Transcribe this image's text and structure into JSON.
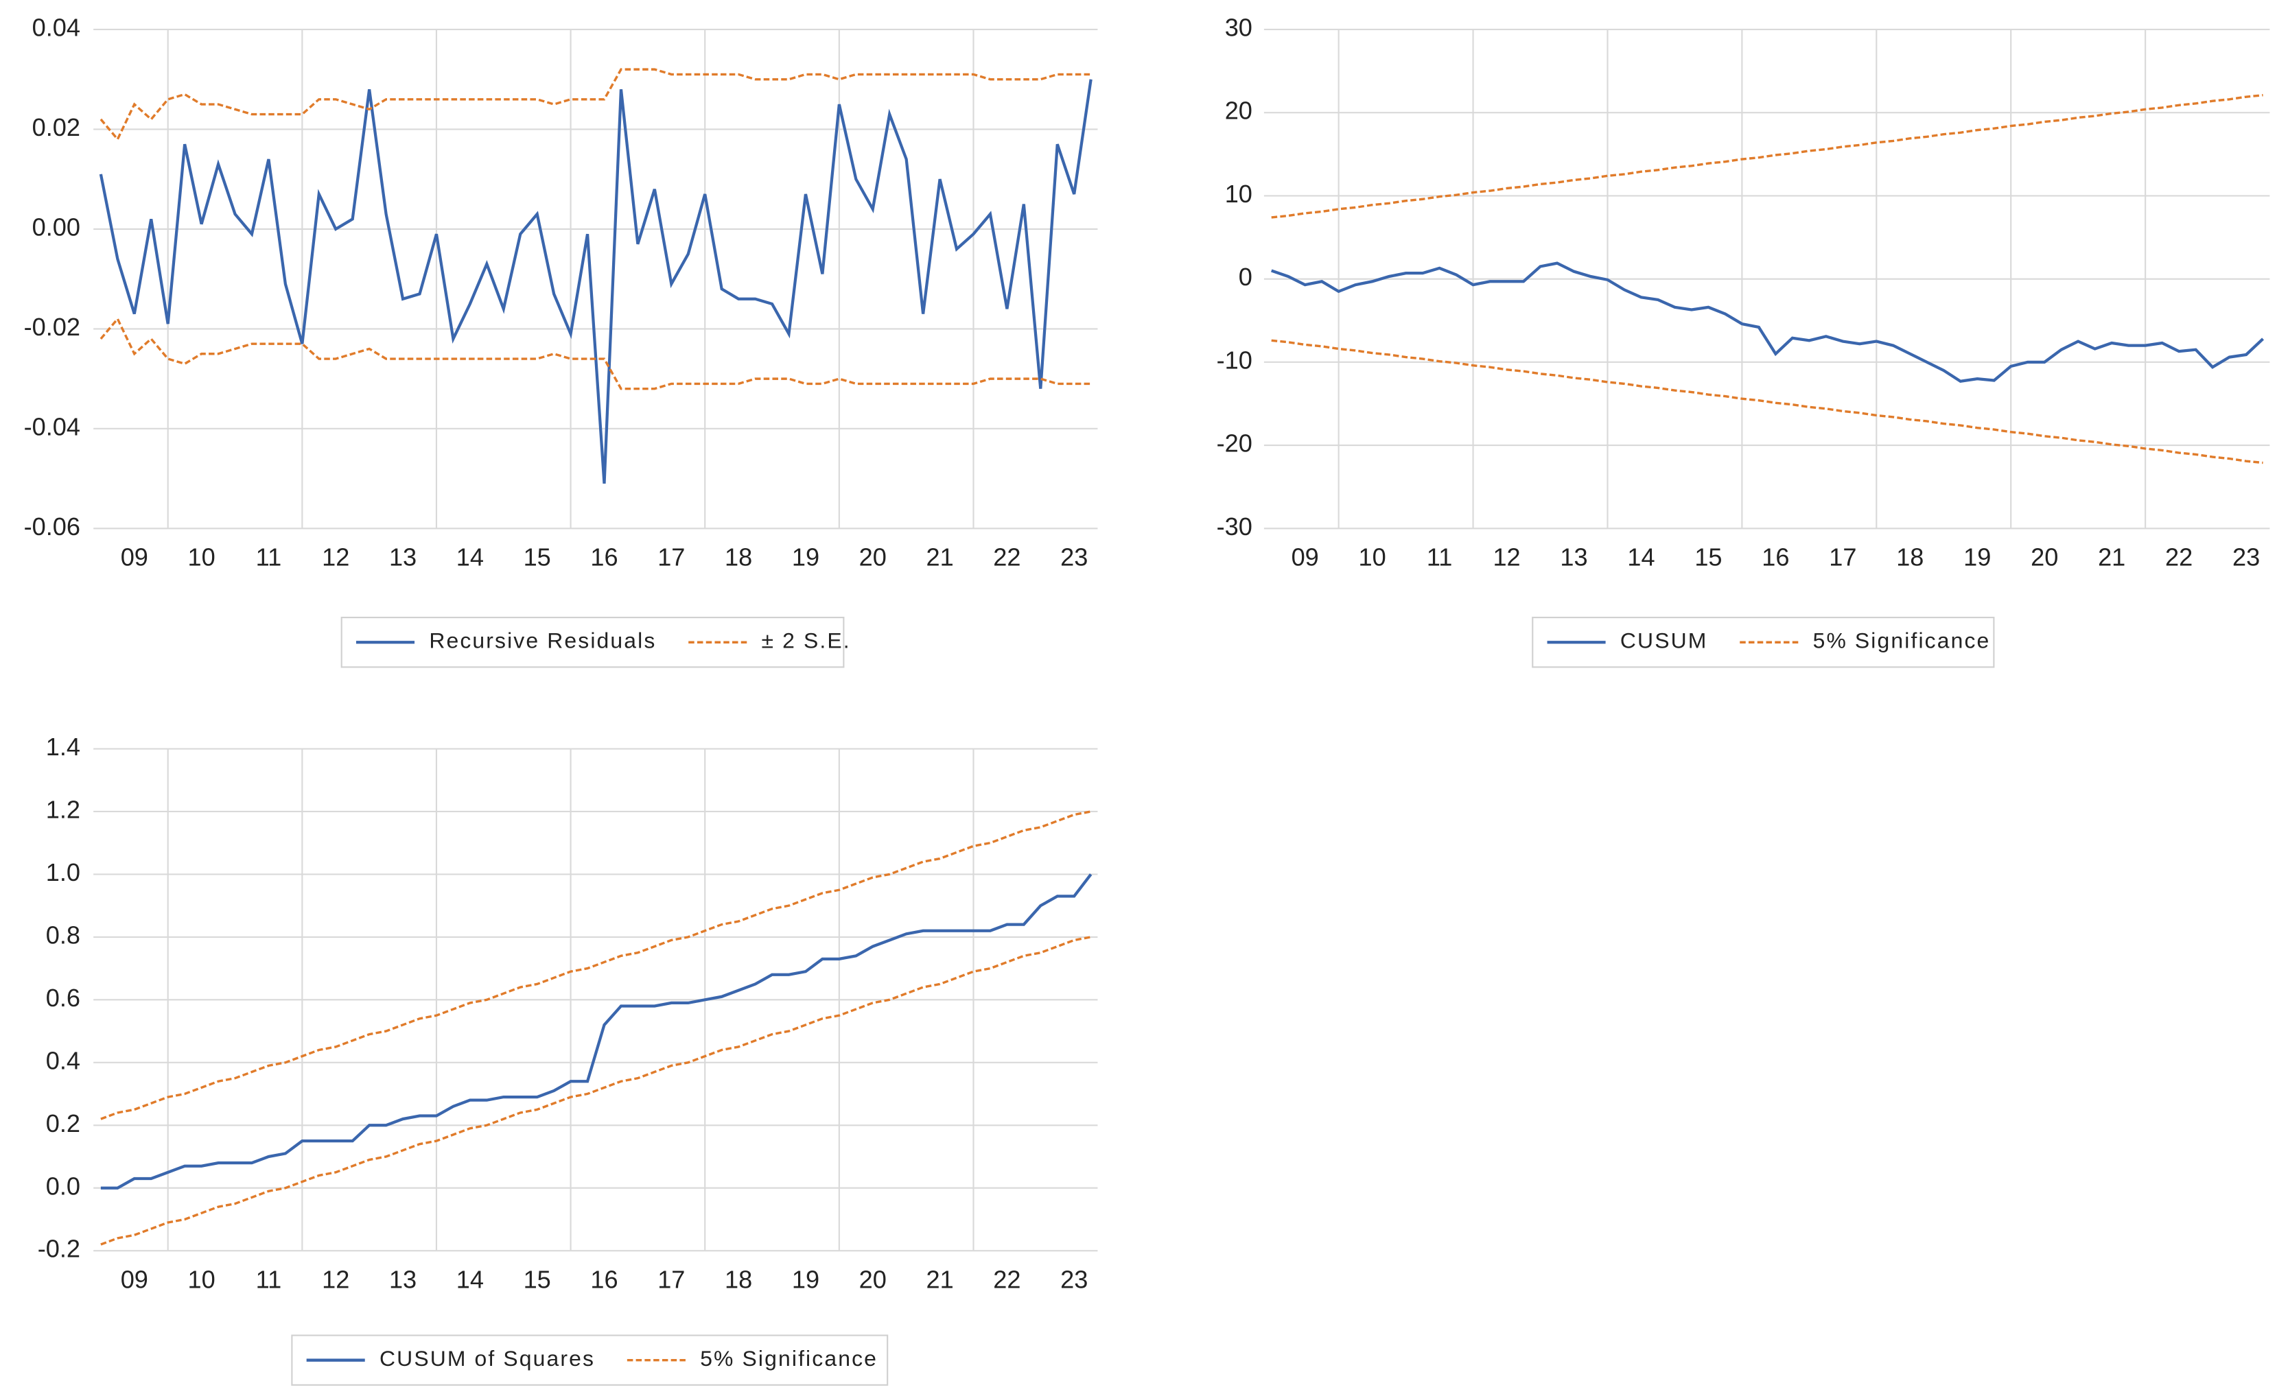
{
  "chart_data": [
    {
      "type": "line",
      "x": [
        2009,
        2009.25,
        2009.5,
        2009.75,
        2010,
        2010.25,
        2010.5,
        2010.75,
        2011,
        2011.25,
        2011.5,
        2011.75,
        2012,
        2012.25,
        2012.5,
        2012.75,
        2013,
        2013.25,
        2013.5,
        2013.75,
        2014,
        2014.25,
        2014.5,
        2014.75,
        2015,
        2015.25,
        2015.5,
        2015.75,
        2016,
        2016.25,
        2016.5,
        2016.75,
        2017,
        2017.25,
        2017.5,
        2017.75,
        2018,
        2018.25,
        2018.5,
        2018.75,
        2019,
        2019.25,
        2019.5,
        2019.75,
        2020,
        2020.25,
        2020.5,
        2020.75,
        2021,
        2021.25,
        2021.5,
        2021.75,
        2022,
        2022.25,
        2022.5,
        2022.75,
        2023,
        2023.25,
        2023.5,
        2023.75
      ],
      "series": [
        {
          "name": "Recursive Residuals",
          "color": "#3a66ad",
          "values": [
            0.011,
            -0.006,
            -0.017,
            0.002,
            -0.019,
            0.017,
            0.001,
            0.013,
            0.003,
            -0.001,
            0.014,
            -0.011,
            -0.023,
            0.007,
            0.0,
            0.002,
            0.028,
            0.003,
            -0.014,
            -0.013,
            -0.001,
            -0.022,
            -0.015,
            -0.007,
            -0.016,
            -0.001,
            0.003,
            -0.013,
            -0.021,
            -0.001,
            -0.051,
            0.028,
            -0.003,
            0.008,
            -0.011,
            -0.005,
            0.007,
            -0.012,
            -0.014,
            -0.014,
            -0.015,
            -0.021,
            0.007,
            -0.009,
            0.025,
            0.01,
            0.004,
            0.023,
            0.014,
            -0.017,
            0.01,
            -0.004,
            -0.001,
            0.003,
            -0.016,
            0.005,
            -0.032,
            0.017,
            0.007,
            0.03
          ]
        },
        {
          "name": "± 2 S.E.",
          "color": "#e07b2a",
          "dash": true,
          "values": [
            0.022,
            0.018,
            0.025,
            0.022,
            0.026,
            0.027,
            0.025,
            0.025,
            0.024,
            0.023,
            0.023,
            0.023,
            0.023,
            0.026,
            0.026,
            0.025,
            0.024,
            0.026,
            0.026,
            0.026,
            0.026,
            0.026,
            0.026,
            0.026,
            0.026,
            0.026,
            0.026,
            0.025,
            0.026,
            0.026,
            0.026,
            0.032,
            0.032,
            0.032,
            0.031,
            0.031,
            0.031,
            0.031,
            0.031,
            0.03,
            0.03,
            0.03,
            0.031,
            0.031,
            0.03,
            0.031,
            0.031,
            0.031,
            0.031,
            0.031,
            0.031,
            0.031,
            0.031,
            0.03,
            0.03,
            0.03,
            0.03,
            0.031,
            0.031,
            0.031
          ],
          "lower": [
            -0.022,
            -0.018,
            -0.025,
            -0.022,
            -0.026,
            -0.027,
            -0.025,
            -0.025,
            -0.024,
            -0.023,
            -0.023,
            -0.023,
            -0.023,
            -0.026,
            -0.026,
            -0.025,
            -0.024,
            -0.026,
            -0.026,
            -0.026,
            -0.026,
            -0.026,
            -0.026,
            -0.026,
            -0.026,
            -0.026,
            -0.026,
            -0.025,
            -0.026,
            -0.026,
            -0.026,
            -0.032,
            -0.032,
            -0.032,
            -0.031,
            -0.031,
            -0.031,
            -0.031,
            -0.031,
            -0.03,
            -0.03,
            -0.03,
            -0.031,
            -0.031,
            -0.03,
            -0.031,
            -0.031,
            -0.031,
            -0.031,
            -0.031,
            -0.031,
            -0.031,
            -0.031,
            -0.03,
            -0.03,
            -0.03,
            -0.03,
            -0.031,
            -0.031,
            -0.031
          ]
        }
      ],
      "xlim": [
        2008.89,
        2023.85
      ],
      "xticks": [
        {
          "value": 2009.5,
          "label": "09"
        },
        {
          "value": 2010.5,
          "label": "10"
        },
        {
          "value": 2011.5,
          "label": "11"
        },
        {
          "value": 2012.5,
          "label": "12"
        },
        {
          "value": 2013.5,
          "label": "13"
        },
        {
          "value": 2014.5,
          "label": "14"
        },
        {
          "value": 2015.5,
          "label": "15"
        },
        {
          "value": 2016.5,
          "label": "16"
        },
        {
          "value": 2017.5,
          "label": "17"
        },
        {
          "value": 2018.5,
          "label": "18"
        },
        {
          "value": 2019.5,
          "label": "19"
        },
        {
          "value": 2020.5,
          "label": "20"
        },
        {
          "value": 2021.5,
          "label": "21"
        },
        {
          "value": 2022.5,
          "label": "22"
        },
        {
          "value": 2023.5,
          "label": "23"
        }
      ],
      "xgrid": [
        2010,
        2012,
        2014,
        2016,
        2018,
        2020,
        2022
      ],
      "ylim": [
        -0.06,
        0.04
      ],
      "yticks": [
        {
          "value": 0.04,
          "label": "0.04"
        },
        {
          "value": 0.02,
          "label": "0.02"
        },
        {
          "value": 0,
          "label": "0.00"
        },
        {
          "value": -0.02,
          "label": "-0.02"
        },
        {
          "value": -0.04,
          "label": "-0.04"
        },
        {
          "value": -0.06,
          "label": "-0.06"
        }
      ],
      "grid": true
    },
    {
      "type": "line",
      "x": [
        2009,
        2009.25,
        2009.5,
        2009.75,
        2010,
        2010.25,
        2010.5,
        2010.75,
        2011,
        2011.25,
        2011.5,
        2011.75,
        2012,
        2012.25,
        2012.5,
        2012.75,
        2013,
        2013.25,
        2013.5,
        2013.75,
        2014,
        2014.25,
        2014.5,
        2014.75,
        2015,
        2015.25,
        2015.5,
        2015.75,
        2016,
        2016.25,
        2016.5,
        2016.75,
        2017,
        2017.25,
        2017.5,
        2017.75,
        2018,
        2018.25,
        2018.5,
        2018.75,
        2019,
        2019.25,
        2019.5,
        2019.75,
        2020,
        2020.25,
        2020.5,
        2020.75,
        2021,
        2021.25,
        2021.5,
        2021.75,
        2022,
        2022.25,
        2022.5,
        2022.75,
        2023,
        2023.25,
        2023.5,
        2023.75
      ],
      "series": [
        {
          "name": "CUSUM",
          "color": "#3a66ad",
          "values": [
            1,
            0.3,
            -0.7,
            -0.3,
            -1.5,
            -0.7,
            -0.3,
            0.3,
            0.7,
            0.7,
            1.3,
            0.5,
            -0.7,
            -0.3,
            -0.3,
            -0.3,
            1.5,
            1.9,
            0.9,
            0.3,
            -0.1,
            -1.3,
            -2.2,
            -2.5,
            -3.4,
            -3.7,
            -3.4,
            -4.2,
            -5.4,
            -5.8,
            -9,
            -7.1,
            -7.4,
            -6.9,
            -7.5,
            -7.8,
            -7.5,
            -8,
            -9,
            -10,
            -11,
            -12.3,
            -12,
            -12.2,
            -10.5,
            -10,
            -10,
            -8.5,
            -7.5,
            -8.4,
            -7.7,
            -8,
            -8,
            -7.7,
            -8.7,
            -8.5,
            -10.6,
            -9.4,
            -9.1,
            -7.2
          ]
        },
        {
          "name": "5% Significance",
          "color": "#e07b2a",
          "dash": true,
          "values": [
            7.4,
            7.6,
            7.9,
            8.1,
            8.4,
            8.6,
            8.9,
            9.1,
            9.4,
            9.6,
            9.9,
            10.1,
            10.4,
            10.6,
            10.9,
            11.1,
            11.4,
            11.6,
            11.9,
            12.1,
            12.4,
            12.6,
            12.9,
            13.1,
            13.4,
            13.6,
            13.9,
            14.1,
            14.4,
            14.6,
            14.9,
            15.1,
            15.4,
            15.6,
            15.9,
            16.1,
            16.4,
            16.6,
            16.9,
            17.1,
            17.4,
            17.6,
            17.9,
            18.1,
            18.4,
            18.6,
            18.9,
            19.1,
            19.4,
            19.6,
            19.9,
            20.1,
            20.4,
            20.6,
            20.9,
            21.1,
            21.4,
            21.6,
            21.9,
            22.1
          ],
          "lower": [
            -7.4,
            -7.6,
            -7.9,
            -8.1,
            -8.4,
            -8.6,
            -8.9,
            -9.1,
            -9.4,
            -9.6,
            -9.9,
            -10.1,
            -10.4,
            -10.6,
            -10.9,
            -11.1,
            -11.4,
            -11.6,
            -11.9,
            -12.1,
            -12.4,
            -12.6,
            -12.9,
            -13.1,
            -13.4,
            -13.6,
            -13.9,
            -14.1,
            -14.4,
            -14.6,
            -14.9,
            -15.1,
            -15.4,
            -15.6,
            -15.9,
            -16.1,
            -16.4,
            -16.6,
            -16.9,
            -17.1,
            -17.4,
            -17.6,
            -17.9,
            -18.1,
            -18.4,
            -18.6,
            -18.9,
            -19.1,
            -19.4,
            -19.6,
            -19.9,
            -20.1,
            -20.4,
            -20.6,
            -20.9,
            -21.1,
            -21.4,
            -21.6,
            -21.9,
            -22.1
          ]
        }
      ],
      "xlim": [
        2008.89,
        2023.85
      ],
      "xticks": [
        {
          "value": 2009.5,
          "label": "09"
        },
        {
          "value": 2010.5,
          "label": "10"
        },
        {
          "value": 2011.5,
          "label": "11"
        },
        {
          "value": 2012.5,
          "label": "12"
        },
        {
          "value": 2013.5,
          "label": "13"
        },
        {
          "value": 2014.5,
          "label": "14"
        },
        {
          "value": 2015.5,
          "label": "15"
        },
        {
          "value": 2016.5,
          "label": "16"
        },
        {
          "value": 2017.5,
          "label": "17"
        },
        {
          "value": 2018.5,
          "label": "18"
        },
        {
          "value": 2019.5,
          "label": "19"
        },
        {
          "value": 2020.5,
          "label": "20"
        },
        {
          "value": 2021.5,
          "label": "21"
        },
        {
          "value": 2022.5,
          "label": "22"
        },
        {
          "value": 2023.5,
          "label": "23"
        }
      ],
      "xgrid": [
        2010,
        2012,
        2014,
        2016,
        2018,
        2020,
        2022
      ],
      "ylim": [
        -30,
        30
      ],
      "yticks": [
        30,
        20,
        10,
        0,
        -10,
        -20,
        -30
      ],
      "grid": true
    },
    {
      "type": "line",
      "x": [
        2009,
        2009.25,
        2009.5,
        2009.75,
        2010,
        2010.25,
        2010.5,
        2010.75,
        2011,
        2011.25,
        2011.5,
        2011.75,
        2012,
        2012.25,
        2012.5,
        2012.75,
        2013,
        2013.25,
        2013.5,
        2013.75,
        2014,
        2014.25,
        2014.5,
        2014.75,
        2015,
        2015.25,
        2015.5,
        2015.75,
        2016,
        2016.25,
        2016.5,
        2016.75,
        2017,
        2017.25,
        2017.5,
        2017.75,
        2018,
        2018.25,
        2018.5,
        2018.75,
        2019,
        2019.25,
        2019.5,
        2019.75,
        2020,
        2020.25,
        2020.5,
        2020.75,
        2021,
        2021.25,
        2021.5,
        2021.75,
        2022,
        2022.25,
        2022.5,
        2022.75,
        2023,
        2023.25,
        2023.5,
        2023.75
      ],
      "series": [
        {
          "name": "CUSUM of Squares",
          "color": "#3a66ad",
          "values": [
            0.0,
            0.0,
            0.03,
            0.03,
            0.05,
            0.07,
            0.07,
            0.08,
            0.08,
            0.08,
            0.1,
            0.11,
            0.15,
            0.15,
            0.15,
            0.15,
            0.2,
            0.2,
            0.22,
            0.23,
            0.23,
            0.26,
            0.28,
            0.28,
            0.29,
            0.29,
            0.29,
            0.31,
            0.34,
            0.34,
            0.52,
            0.58,
            0.58,
            0.58,
            0.59,
            0.59,
            0.6,
            0.61,
            0.63,
            0.65,
            0.68,
            0.68,
            0.69,
            0.73,
            0.73,
            0.74,
            0.77,
            0.79,
            0.81,
            0.82,
            0.82,
            0.82,
            0.82,
            0.82,
            0.84,
            0.84,
            0.9,
            0.93,
            0.93,
            1.0
          ]
        },
        {
          "name": "5% Significance",
          "color": "#e07b2a",
          "dash": true,
          "values": [
            0.22,
            0.24,
            0.25,
            0.27,
            0.29,
            0.3,
            0.32,
            0.34,
            0.35,
            0.37,
            0.39,
            0.4,
            0.42,
            0.44,
            0.45,
            0.47,
            0.49,
            0.5,
            0.52,
            0.54,
            0.55,
            0.57,
            0.59,
            0.6,
            0.62,
            0.64,
            0.65,
            0.67,
            0.69,
            0.7,
            0.72,
            0.74,
            0.75,
            0.77,
            0.79,
            0.8,
            0.82,
            0.84,
            0.85,
            0.87,
            0.89,
            0.9,
            0.92,
            0.94,
            0.95,
            0.97,
            0.99,
            1.0,
            1.02,
            1.04,
            1.05,
            1.07,
            1.09,
            1.1,
            1.12,
            1.14,
            1.15,
            1.17,
            1.19,
            1.2
          ],
          "lower": [
            -0.18,
            -0.16,
            -0.15,
            -0.13,
            -0.11,
            -0.1,
            -0.08,
            -0.06,
            -0.05,
            -0.03,
            -0.01,
            0.0,
            0.02,
            0.04,
            0.05,
            0.07,
            0.09,
            0.1,
            0.12,
            0.14,
            0.15,
            0.17,
            0.19,
            0.2,
            0.22,
            0.24,
            0.25,
            0.27,
            0.29,
            0.3,
            0.32,
            0.34,
            0.35,
            0.37,
            0.39,
            0.4,
            0.42,
            0.44,
            0.45,
            0.47,
            0.49,
            0.5,
            0.52,
            0.54,
            0.55,
            0.57,
            0.59,
            0.6,
            0.62,
            0.64,
            0.65,
            0.67,
            0.69,
            0.7,
            0.72,
            0.74,
            0.75,
            0.77,
            0.79,
            0.8
          ]
        }
      ],
      "xlim": [
        2008.89,
        2023.85
      ],
      "xticks": [
        {
          "value": 2009.5,
          "label": "09"
        },
        {
          "value": 2010.5,
          "label": "10"
        },
        {
          "value": 2011.5,
          "label": "11"
        },
        {
          "value": 2012.5,
          "label": "12"
        },
        {
          "value": 2013.5,
          "label": "13"
        },
        {
          "value": 2014.5,
          "label": "14"
        },
        {
          "value": 2015.5,
          "label": "15"
        },
        {
          "value": 2016.5,
          "label": "16"
        },
        {
          "value": 2017.5,
          "label": "17"
        },
        {
          "value": 2018.5,
          "label": "18"
        },
        {
          "value": 2019.5,
          "label": "19"
        },
        {
          "value": 2020.5,
          "label": "20"
        },
        {
          "value": 2021.5,
          "label": "21"
        },
        {
          "value": 2022.5,
          "label": "22"
        },
        {
          "value": 2023.5,
          "label": "23"
        }
      ],
      "xgrid": [
        2010,
        2012,
        2014,
        2016,
        2018,
        2020,
        2022
      ],
      "ylim": [
        -0.2,
        1.4
      ],
      "yticks": [
        1.4,
        1.2,
        {
          "value": 1,
          "label": "1.0"
        },
        0.8,
        0.6,
        0.4,
        0.2,
        {
          "value": 0,
          "label": "0.0"
        },
        -0.2
      ],
      "grid": true
    }
  ]
}
